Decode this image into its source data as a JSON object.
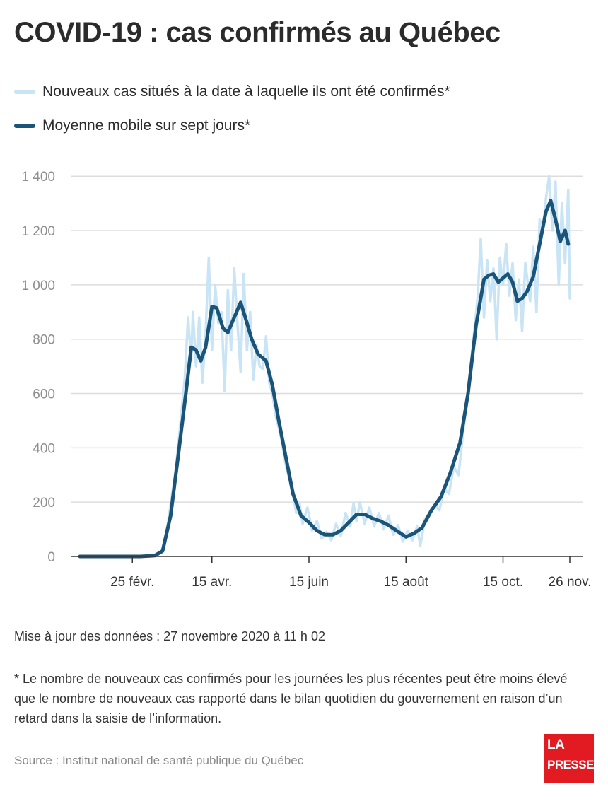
{
  "title": "COVID-19 : cas confirmés au Québec",
  "legend": {
    "daily_label": "Nouveaux cas situés à la date à laquelle ils ont été confirmés*",
    "average_label": "Moyenne mobile sur sept jours*"
  },
  "colors": {
    "daily": "#c9e4f5",
    "average": "#1b5479",
    "grid": "#dddddd",
    "axis": "#333333",
    "logo_bg": "#e21a22"
  },
  "chart_data": {
    "type": "line",
    "ylim": [
      0,
      1450
    ],
    "y_ticks": [
      0,
      200,
      400,
      600,
      800,
      1000,
      1200,
      1400
    ],
    "y_tick_labels": [
      "0",
      "200",
      "400",
      "600",
      "800",
      "1 000",
      "1 200",
      "1 400"
    ],
    "x_start": "2020-01-23",
    "x_end": "2020-11-26",
    "x_ticks": [
      {
        "date": "2020-02-25",
        "label": "25 févr."
      },
      {
        "date": "2020-04-15",
        "label": "15 avr."
      },
      {
        "date": "2020-06-15",
        "label": "15 juin"
      },
      {
        "date": "2020-08-15",
        "label": "15 août"
      },
      {
        "date": "2020-10-15",
        "label": "15 oct."
      },
      {
        "date": "2020-11-26",
        "label": "26 nov."
      }
    ],
    "series": [
      {
        "name": "Moyenne mobile sur sept jours*",
        "points": [
          [
            "2020-01-23",
            0
          ],
          [
            "2020-03-01",
            0
          ],
          [
            "2020-03-10",
            3
          ],
          [
            "2020-03-15",
            20
          ],
          [
            "2020-03-20",
            150
          ],
          [
            "2020-03-25",
            380
          ],
          [
            "2020-03-30",
            620
          ],
          [
            "2020-04-02",
            770
          ],
          [
            "2020-04-05",
            760
          ],
          [
            "2020-04-08",
            720
          ],
          [
            "2020-04-11",
            770
          ],
          [
            "2020-04-15",
            920
          ],
          [
            "2020-04-18",
            915
          ],
          [
            "2020-04-22",
            840
          ],
          [
            "2020-04-25",
            825
          ],
          [
            "2020-04-29",
            880
          ],
          [
            "2020-05-03",
            935
          ],
          [
            "2020-05-06",
            880
          ],
          [
            "2020-05-10",
            800
          ],
          [
            "2020-05-14",
            745
          ],
          [
            "2020-05-17",
            730
          ],
          [
            "2020-05-19",
            720
          ],
          [
            "2020-05-23",
            630
          ],
          [
            "2020-05-27",
            500
          ],
          [
            "2020-06-01",
            350
          ],
          [
            "2020-06-05",
            230
          ],
          [
            "2020-06-10",
            150
          ],
          [
            "2020-06-15",
            125
          ],
          [
            "2020-06-20",
            95
          ],
          [
            "2020-06-25",
            80
          ],
          [
            "2020-06-30",
            80
          ],
          [
            "2020-07-05",
            95
          ],
          [
            "2020-07-10",
            125
          ],
          [
            "2020-07-15",
            155
          ],
          [
            "2020-07-20",
            155
          ],
          [
            "2020-07-25",
            140
          ],
          [
            "2020-07-30",
            130
          ],
          [
            "2020-08-04",
            115
          ],
          [
            "2020-08-09",
            95
          ],
          [
            "2020-08-15",
            72
          ],
          [
            "2020-08-20",
            85
          ],
          [
            "2020-08-25",
            105
          ],
          [
            "2020-08-31",
            170
          ],
          [
            "2020-09-06",
            220
          ],
          [
            "2020-09-12",
            310
          ],
          [
            "2020-09-18",
            420
          ],
          [
            "2020-09-23",
            600
          ],
          [
            "2020-09-28",
            850
          ],
          [
            "2020-10-03",
            1020
          ],
          [
            "2020-10-06",
            1035
          ],
          [
            "2020-10-09",
            1040
          ],
          [
            "2020-10-12",
            1010
          ],
          [
            "2020-10-15",
            1025
          ],
          [
            "2020-10-18",
            1040
          ],
          [
            "2020-10-21",
            1010
          ],
          [
            "2020-10-24",
            940
          ],
          [
            "2020-10-27",
            950
          ],
          [
            "2020-10-30",
            975
          ],
          [
            "2020-11-03",
            1030
          ],
          [
            "2020-11-07",
            1150
          ],
          [
            "2020-11-11",
            1270
          ],
          [
            "2020-11-14",
            1310
          ],
          [
            "2020-11-17",
            1240
          ],
          [
            "2020-11-20",
            1160
          ],
          [
            "2020-11-23",
            1200
          ],
          [
            "2020-11-25",
            1150
          ]
        ]
      },
      {
        "name": "Nouveaux cas situés à la date à laquelle ils ont été confirmés*",
        "points": [
          [
            "2020-01-23",
            0
          ],
          [
            "2020-03-09",
            0
          ],
          [
            "2020-03-12",
            5
          ],
          [
            "2020-03-15",
            30
          ],
          [
            "2020-03-18",
            110
          ],
          [
            "2020-03-21",
            230
          ],
          [
            "2020-03-23",
            310
          ],
          [
            "2020-03-25",
            420
          ],
          [
            "2020-03-27",
            540
          ],
          [
            "2020-03-29",
            660
          ],
          [
            "2020-03-31",
            880
          ],
          [
            "2020-04-02",
            720
          ],
          [
            "2020-04-03",
            900
          ],
          [
            "2020-04-05",
            700
          ],
          [
            "2020-04-07",
            880
          ],
          [
            "2020-04-09",
            640
          ],
          [
            "2020-04-11",
            820
          ],
          [
            "2020-04-13",
            1100
          ],
          [
            "2020-04-15",
            760
          ],
          [
            "2020-04-17",
            1000
          ],
          [
            "2020-04-19",
            860
          ],
          [
            "2020-04-21",
            900
          ],
          [
            "2020-04-23",
            610
          ],
          [
            "2020-04-25",
            980
          ],
          [
            "2020-04-27",
            760
          ],
          [
            "2020-04-29",
            1060
          ],
          [
            "2020-05-01",
            860
          ],
          [
            "2020-05-03",
            680
          ],
          [
            "2020-05-05",
            1040
          ],
          [
            "2020-05-07",
            760
          ],
          [
            "2020-05-09",
            900
          ],
          [
            "2020-05-11",
            650
          ],
          [
            "2020-05-13",
            780
          ],
          [
            "2020-05-15",
            700
          ],
          [
            "2020-05-17",
            690
          ],
          [
            "2020-05-19",
            810
          ],
          [
            "2020-05-21",
            640
          ],
          [
            "2020-05-23",
            600
          ],
          [
            "2020-05-25",
            520
          ],
          [
            "2020-05-28",
            450
          ],
          [
            "2020-06-01",
            320
          ],
          [
            "2020-06-04",
            260
          ],
          [
            "2020-06-07",
            160
          ],
          [
            "2020-06-09",
            200
          ],
          [
            "2020-06-11",
            120
          ],
          [
            "2020-06-14",
            180
          ],
          [
            "2020-06-17",
            95
          ],
          [
            "2020-06-20",
            130
          ],
          [
            "2020-06-23",
            65
          ],
          [
            "2020-06-26",
            90
          ],
          [
            "2020-06-29",
            60
          ],
          [
            "2020-07-02",
            120
          ],
          [
            "2020-07-05",
            75
          ],
          [
            "2020-07-08",
            160
          ],
          [
            "2020-07-11",
            110
          ],
          [
            "2020-07-13",
            195
          ],
          [
            "2020-07-15",
            130
          ],
          [
            "2020-07-17",
            200
          ],
          [
            "2020-07-20",
            120
          ],
          [
            "2020-07-23",
            180
          ],
          [
            "2020-07-26",
            110
          ],
          [
            "2020-07-29",
            160
          ],
          [
            "2020-08-01",
            100
          ],
          [
            "2020-08-04",
            150
          ],
          [
            "2020-08-07",
            80
          ],
          [
            "2020-08-10",
            115
          ],
          [
            "2020-08-13",
            55
          ],
          [
            "2020-08-16",
            95
          ],
          [
            "2020-08-19",
            60
          ],
          [
            "2020-08-22",
            110
          ],
          [
            "2020-08-24",
            40
          ],
          [
            "2020-08-27",
            140
          ],
          [
            "2020-08-30",
            160
          ],
          [
            "2020-09-02",
            190
          ],
          [
            "2020-09-05",
            170
          ],
          [
            "2020-09-08",
            250
          ],
          [
            "2020-09-11",
            230
          ],
          [
            "2020-09-14",
            330
          ],
          [
            "2020-09-17",
            300
          ],
          [
            "2020-09-20",
            460
          ],
          [
            "2020-09-23",
            600
          ],
          [
            "2020-09-26",
            780
          ],
          [
            "2020-09-29",
            950
          ],
          [
            "2020-10-01",
            1170
          ],
          [
            "2020-10-03",
            880
          ],
          [
            "2020-10-05",
            1090
          ],
          [
            "2020-10-07",
            940
          ],
          [
            "2020-10-09",
            1060
          ],
          [
            "2020-10-11",
            800
          ],
          [
            "2020-10-13",
            1100
          ],
          [
            "2020-10-15",
            1000
          ],
          [
            "2020-10-17",
            1150
          ],
          [
            "2020-10-19",
            960
          ],
          [
            "2020-10-21",
            1080
          ],
          [
            "2020-10-23",
            870
          ],
          [
            "2020-10-25",
            1020
          ],
          [
            "2020-10-27",
            830
          ],
          [
            "2020-10-29",
            1080
          ],
          [
            "2020-11-01",
            940
          ],
          [
            "2020-11-03",
            1140
          ],
          [
            "2020-11-05",
            900
          ],
          [
            "2020-11-07",
            1240
          ],
          [
            "2020-11-09",
            1200
          ],
          [
            "2020-11-11",
            1320
          ],
          [
            "2020-11-13",
            1400
          ],
          [
            "2020-11-15",
            1200
          ],
          [
            "2020-11-17",
            1380
          ],
          [
            "2020-11-19",
            1000
          ],
          [
            "2020-11-21",
            1300
          ],
          [
            "2020-11-23",
            1080
          ],
          [
            "2020-11-25",
            1350
          ],
          [
            "2020-11-26",
            950
          ]
        ]
      }
    ]
  },
  "update_text": "Mise à jour des données : 27 novembre 2020 à 11 h 02",
  "footnote": "* Le nombre de nouveaux cas confirmés pour les journées les plus récentes peut être moins élevé que le nombre de nouveaux cas rapporté dans le bilan quotidien du gouvernement en raison d’un retard dans la saisie de l’information.",
  "source": "Source : Institut national de santé publique du Québec",
  "logo": {
    "line1": "LA",
    "line2": "PRESSE"
  }
}
